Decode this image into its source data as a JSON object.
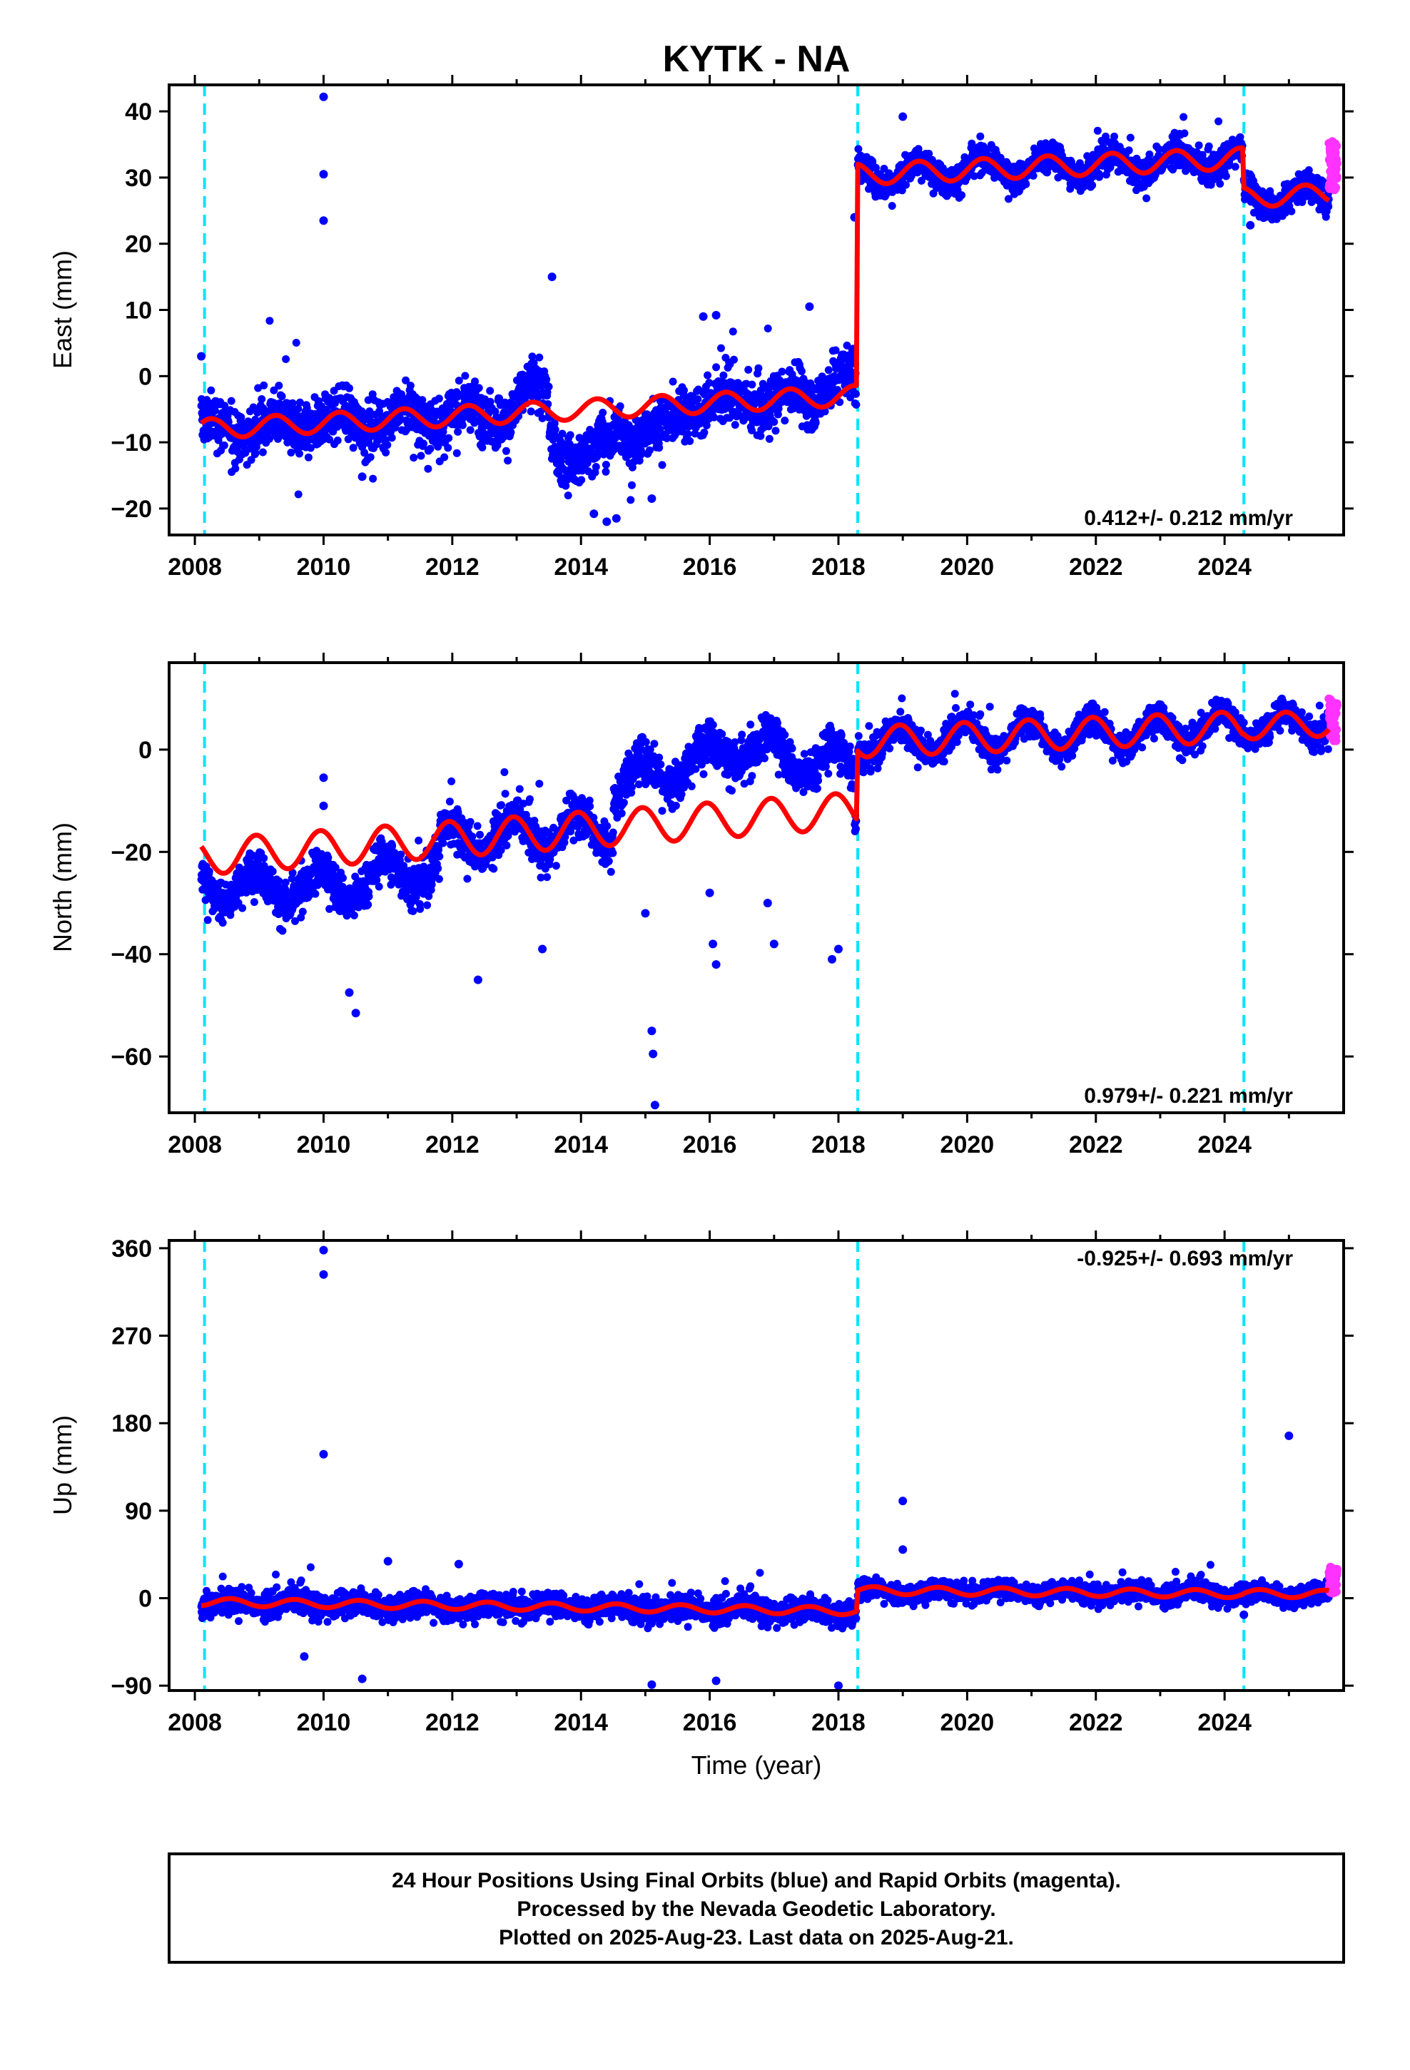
{
  "title": "KYTK - NA",
  "xlabel": "Time (year)",
  "colors": {
    "final": "#0000ff",
    "rapid": "#ff33ff",
    "model": "#ff0000",
    "offset": "#00e5ff"
  },
  "chart_data": [
    {
      "type": "scatter",
      "component": "east",
      "ylabel": "East (mm)",
      "xlim": [
        2007.6,
        2025.85
      ],
      "ylim": [
        -24,
        44
      ],
      "xticks": [
        2008,
        2010,
        2012,
        2014,
        2016,
        2018,
        2020,
        2022,
        2024
      ],
      "yticks": [
        -20,
        -10,
        0,
        10,
        20,
        30,
        40
      ],
      "rate_text": "0.412+/- 0.212 mm/yr",
      "rate_position": "bottom-right",
      "offset_lines": [
        2008.15,
        2018.3,
        2024.3
      ],
      "segments": [
        {
          "start": 2008.1,
          "end": 2018.28,
          "y0": -8.0,
          "slope": 0.5,
          "amplitude": 1.5,
          "phase": 0.0,
          "scatter": 2.8
        },
        {
          "start": 2018.3,
          "end": 2024.28,
          "y0": 30.5,
          "slope": 0.4,
          "amplitude": 1.6,
          "phase": 0.0,
          "scatter": 1.6
        },
        {
          "start": 2024.3,
          "end": 2025.62,
          "y0": 27.0,
          "slope": 0.4,
          "amplitude": 1.5,
          "phase": 0.0,
          "scatter": 1.6
        }
      ],
      "anomalies": [
        {
          "start": 2013.5,
          "end": 2014.5,
          "dy": -8.0
        },
        {
          "start": 2014.5,
          "end": 2015.5,
          "dy": -4.5
        },
        {
          "start": 2017.7,
          "end": 2018.25,
          "dy": 4.0
        },
        {
          "start": 2013.0,
          "end": 2013.6,
          "dy": 3.0
        }
      ],
      "outliers": [
        [
          2010.0,
          42.2
        ],
        [
          2010.0,
          30.5
        ],
        [
          2010.0,
          23.5
        ],
        [
          2013.55,
          15.0
        ],
        [
          2014.4,
          -22.0
        ],
        [
          2014.55,
          -21.5
        ],
        [
          2015.1,
          -18.5
        ],
        [
          2016.1,
          9.2
        ],
        [
          2017.55,
          10.5
        ],
        [
          2018.25,
          24.0
        ],
        [
          2019.0,
          39.2
        ],
        [
          2024.4,
          22.8
        ],
        [
          2008.1,
          3.0
        ],
        [
          2010.6,
          -15.2
        ],
        [
          2014.2,
          -20.8
        ],
        [
          2015.9,
          9.0
        ]
      ],
      "rapid": {
        "start": 2025.62,
        "end": 2025.75,
        "ymin": 28.0,
        "ymax": 35.5
      }
    },
    {
      "type": "scatter",
      "component": "north",
      "ylabel": "North (mm)",
      "xlim": [
        2007.6,
        2025.85
      ],
      "ylim": [
        -71,
        17
      ],
      "xticks": [
        2008,
        2010,
        2012,
        2014,
        2016,
        2018,
        2020,
        2022,
        2024
      ],
      "yticks": [
        -60,
        -40,
        -20,
        0
      ],
      "rate_text": "0.979+/- 0.221 mm/yr",
      "rate_position": "bottom-right",
      "offset_lines": [
        2008.15,
        2018.3,
        2024.3
      ],
      "segments": [
        {
          "start": 2008.1,
          "end": 2018.28,
          "y0": -21.0,
          "slope": 0.9,
          "amplitude": 3.5,
          "phase": 0.3,
          "scatter": 3.0
        },
        {
          "start": 2018.3,
          "end": 2024.28,
          "y0": 1.5,
          "slope": 0.5,
          "amplitude": 3.0,
          "phase": 0.3,
          "scatter": 2.0
        },
        {
          "start": 2024.3,
          "end": 2025.62,
          "y0": 4.5,
          "slope": 0.5,
          "amplitude": 2.5,
          "phase": 0.3,
          "scatter": 2.0
        }
      ],
      "anomalies": [
        {
          "start": 2008.1,
          "end": 2011.8,
          "dy": -8.0
        },
        {
          "start": 2014.5,
          "end": 2018.25,
          "dy": 14.0
        }
      ],
      "outliers": [
        [
          2015.1,
          -55.0
        ],
        [
          2015.12,
          -59.5
        ],
        [
          2015.15,
          -69.5
        ],
        [
          2010.0,
          -5.5
        ],
        [
          2010.0,
          -11.0
        ],
        [
          2010.5,
          -51.5
        ],
        [
          2010.4,
          -47.5
        ],
        [
          2016.1,
          -42.0
        ],
        [
          2016.05,
          -38.0
        ],
        [
          2017.0,
          -38.0
        ],
        [
          2017.9,
          -41.0
        ],
        [
          2018.0,
          -39.0
        ],
        [
          2015.0,
          -32.0
        ],
        [
          2016.0,
          -28.0
        ],
        [
          2016.9,
          -30.0
        ],
        [
          2012.4,
          -45.0
        ],
        [
          2013.4,
          -39.0
        ]
      ],
      "rapid": {
        "start": 2025.62,
        "end": 2025.75,
        "ymin": 1.5,
        "ymax": 10.5
      }
    },
    {
      "type": "scatter",
      "component": "up",
      "ylabel": "Up (mm)",
      "xlim": [
        2007.6,
        2025.85
      ],
      "ylim": [
        -95,
        368
      ],
      "xticks": [
        2008,
        2010,
        2012,
        2014,
        2016,
        2018,
        2020,
        2022,
        2024
      ],
      "yticks": [
        -90,
        0,
        90,
        180,
        270,
        360
      ],
      "rate_text": "-0.925+/- 0.693 mm/yr",
      "rate_position": "top-right",
      "offset_lines": [
        2008.15,
        2018.3,
        2024.3
      ],
      "segments": [
        {
          "start": 2008.1,
          "end": 2018.28,
          "y0": -4.0,
          "slope": -0.9,
          "amplitude": 4.0,
          "phase": 0.7,
          "scatter": 9.0
        },
        {
          "start": 2018.3,
          "end": 2024.28,
          "y0": 8.0,
          "slope": -0.6,
          "amplitude": 4.0,
          "phase": 0.7,
          "scatter": 7.0
        },
        {
          "start": 2024.3,
          "end": 2025.62,
          "y0": 5.0,
          "slope": -0.6,
          "amplitude": 4.0,
          "phase": 0.7,
          "scatter": 7.0
        }
      ],
      "anomalies": [],
      "outliers": [
        [
          2010.0,
          358.0
        ],
        [
          2010.0,
          333.0
        ],
        [
          2010.0,
          148.0
        ],
        [
          2025.0,
          167.0
        ],
        [
          2019.0,
          100.0
        ],
        [
          2019.0,
          50.0
        ],
        [
          2011.0,
          38.0
        ],
        [
          2012.1,
          35.0
        ],
        [
          2015.1,
          -89.0
        ],
        [
          2010.6,
          -83.0
        ],
        [
          2016.1,
          -85.0
        ],
        [
          2018.0,
          -90.0
        ],
        [
          2009.7,
          -60.0
        ],
        [
          2024.3,
          -17.0
        ]
      ],
      "rapid": {
        "start": 2025.62,
        "end": 2025.75,
        "ymin": 5.0,
        "ymax": 33.0
      }
    }
  ],
  "footer": {
    "line1": "24 Hour Positions Using Final Orbits (blue) and Rapid Orbits (magenta).",
    "line2": "Processed by the Nevada Geodetic Laboratory.",
    "line3": "Plotted on 2025-Aug-23. Last data on 2025-Aug-21."
  }
}
